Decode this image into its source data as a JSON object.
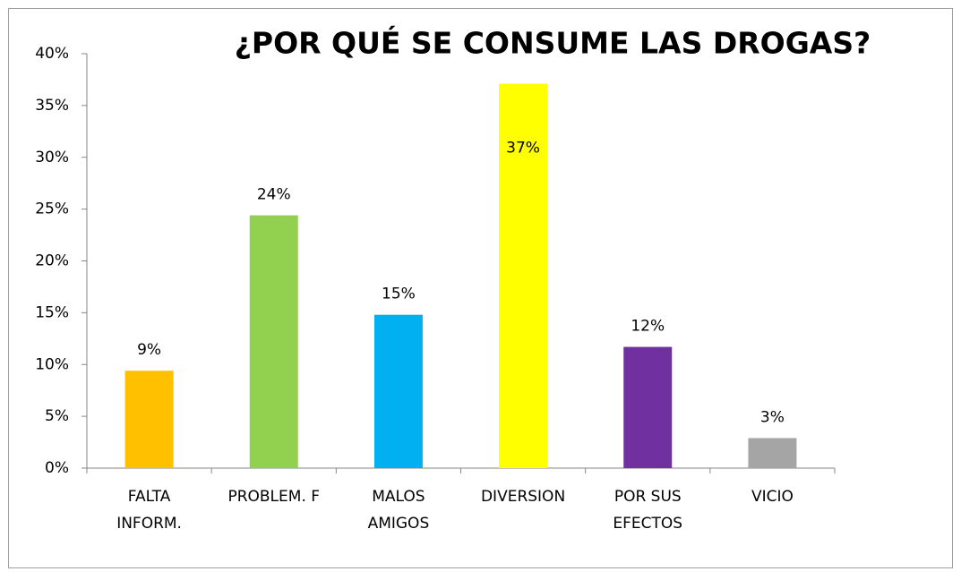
{
  "chart_data": {
    "type": "bar",
    "title": "¿POR  QUÉ SE CONSUME LAS DROGAS?",
    "categories": [
      "FALTA\nINFORM.",
      "PROBLEM. F",
      "MALOS\nAMIGOS",
      "DIVERSION",
      "POR SUS\nEFECTOS",
      "VICIO"
    ],
    "values": [
      9.4,
      24.4,
      14.8,
      37.1,
      11.7,
      2.9
    ],
    "value_labels": [
      "9%",
      "24%",
      "15%",
      "37%",
      "12%",
      "3%"
    ],
    "colors": [
      "#FFC000",
      "#92D050",
      "#00B0F0",
      "#FFFF00",
      "#7030A0",
      "#A5A5A5"
    ],
    "ylim": [
      0,
      40
    ],
    "yticks": [
      {
        "value": 0,
        "label": "0%"
      },
      {
        "value": 5,
        "label": "5%"
      },
      {
        "value": 10,
        "label": "10%"
      },
      {
        "value": 15,
        "label": "15%"
      },
      {
        "value": 20,
        "label": "20%"
      },
      {
        "value": 25,
        "label": "25%"
      },
      {
        "value": 30,
        "label": "30%"
      },
      {
        "value": 35,
        "label": "35%"
      },
      {
        "value": 40,
        "label": "40%"
      }
    ]
  }
}
